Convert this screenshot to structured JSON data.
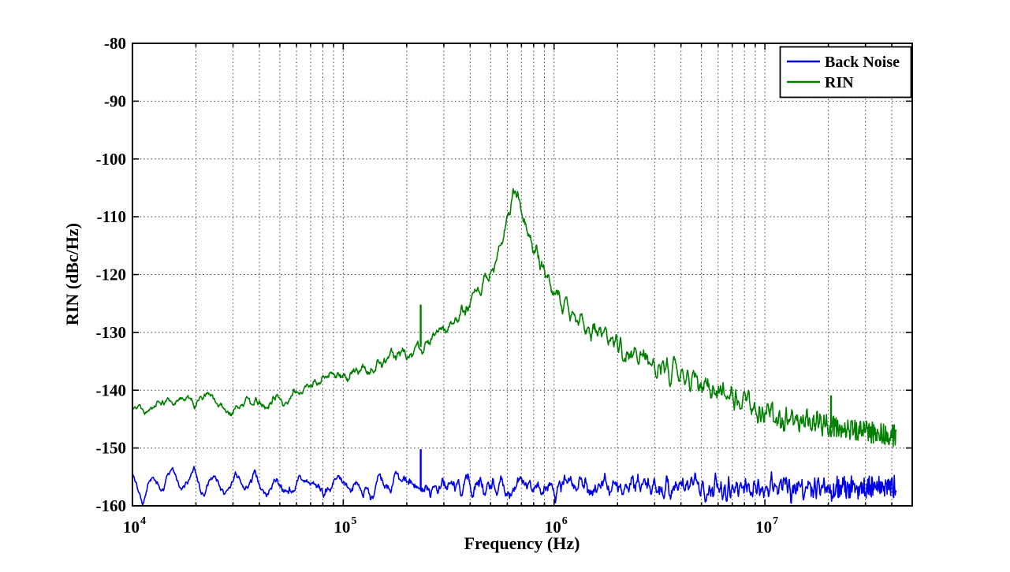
{
  "figure": {
    "background": "#ffffff",
    "title": "",
    "colors": {
      "axis": "#000000",
      "grid": "#3a3a3a",
      "plot_background": "#ffffff",
      "back_noise": "#0000e6",
      "rin": "#007f00"
    }
  },
  "chart_data": {
    "type": "line",
    "title": "",
    "xlabel": "Frequency (Hz)",
    "ylabel": "RIN (dBc/Hz)",
    "xscale": "log",
    "xlim": [
      10000,
      50000000
    ],
    "ylim": [
      -160,
      -80
    ],
    "grid": "dotted, major and minor verticals on log x, horizontals every 10 dB",
    "legend_position": "top-right inside axes",
    "x_ticks": [
      {
        "base": "10",
        "exponent": "4",
        "value": 10000
      },
      {
        "base": "10",
        "exponent": "5",
        "value": 100000
      },
      {
        "base": "10",
        "exponent": "6",
        "value": 1000000
      },
      {
        "base": "10",
        "exponent": "7",
        "value": 10000000
      }
    ],
    "y_ticks": [
      {
        "label": "-80",
        "value": -80
      },
      {
        "label": "-90",
        "value": -90
      },
      {
        "label": "-100",
        "value": -100
      },
      {
        "label": "-110",
        "value": -110
      },
      {
        "label": "-120",
        "value": -120
      },
      {
        "label": "-130",
        "value": -130
      },
      {
        "label": "-140",
        "value": -140
      },
      {
        "label": "-150",
        "value": -150
      },
      {
        "label": "-160",
        "value": -160
      }
    ],
    "data_end_hz": 42000000,
    "render_points": 1500,
    "series": [
      {
        "name": "Back Noise",
        "color": "#0000e6",
        "seed": 7,
        "noise_db": 1.6,
        "anchors_hz_db": [
          [
            10000,
            -154.0
          ],
          [
            11200,
            -159.3
          ],
          [
            12500,
            -154.6
          ],
          [
            14000,
            -157.6
          ],
          [
            15500,
            -154.4
          ],
          [
            17500,
            -157.8
          ],
          [
            19500,
            -154.6
          ],
          [
            22000,
            -157.2
          ],
          [
            24500,
            -155.0
          ],
          [
            27500,
            -159.0
          ],
          [
            30500,
            -155.0
          ],
          [
            34000,
            -157.6
          ],
          [
            38000,
            -155.2
          ],
          [
            43000,
            -157.8
          ],
          [
            48000,
            -155.4
          ],
          [
            55000,
            -157.6
          ],
          [
            65000,
            -155.6
          ],
          [
            80000,
            -157.4
          ],
          [
            100000,
            -156.0
          ],
          [
            130000,
            -157.2
          ],
          [
            170000,
            -156.2
          ],
          [
            230000,
            -156.8
          ],
          [
            400000,
            -156.6
          ],
          [
            1000000,
            -156.8
          ],
          [
            3000000,
            -156.7
          ],
          [
            10000000,
            -156.8
          ],
          [
            42000000,
            -156.8
          ]
        ],
        "spikes_hz_db": [
          [
            233000,
            -150.2
          ]
        ]
      },
      {
        "name": "RIN",
        "color": "#007f00",
        "seed": 13,
        "noise_db": 1.5,
        "anchors_hz_db": [
          [
            10000,
            -141.8
          ],
          [
            11500,
            -143.2
          ],
          [
            13000,
            -141.4
          ],
          [
            15000,
            -142.8
          ],
          [
            17000,
            -141.2
          ],
          [
            20000,
            -142.2
          ],
          [
            23000,
            -140.9
          ],
          [
            26000,
            -142.9
          ],
          [
            30000,
            -144.2
          ],
          [
            33000,
            -141.4
          ],
          [
            38000,
            -142.4
          ],
          [
            43000,
            -143.0
          ],
          [
            48000,
            -140.9
          ],
          [
            55000,
            -142.1
          ],
          [
            62000,
            -139.9
          ],
          [
            70000,
            -138.9
          ],
          [
            80000,
            -138.1
          ],
          [
            90000,
            -137.8
          ],
          [
            100000,
            -137.3
          ],
          [
            115000,
            -137.0
          ],
          [
            130000,
            -136.4
          ],
          [
            150000,
            -134.9
          ],
          [
            170000,
            -133.9
          ],
          [
            200000,
            -133.9
          ],
          [
            230000,
            -132.4
          ],
          [
            260000,
            -130.9
          ],
          [
            300000,
            -129.9
          ],
          [
            350000,
            -127.9
          ],
          [
            400000,
            -125.4
          ],
          [
            450000,
            -122.4
          ],
          [
            500000,
            -119.4
          ],
          [
            550000,
            -115.4
          ],
          [
            600000,
            -110.9
          ],
          [
            630000,
            -107.7
          ],
          [
            655000,
            -106.0
          ],
          [
            680000,
            -107.6
          ],
          [
            720000,
            -110.6
          ],
          [
            770000,
            -113.6
          ],
          [
            830000,
            -116.6
          ],
          [
            900000,
            -119.6
          ],
          [
            1000000,
            -122.9
          ],
          [
            1200000,
            -126.4
          ],
          [
            1400000,
            -128.7
          ],
          [
            1700000,
            -130.7
          ],
          [
            2000000,
            -132.1
          ],
          [
            2500000,
            -134.1
          ],
          [
            3000000,
            -135.4
          ],
          [
            3500000,
            -136.4
          ],
          [
            4000000,
            -137.4
          ],
          [
            5000000,
            -138.9
          ],
          [
            6000000,
            -139.9
          ],
          [
            7000000,
            -140.9
          ],
          [
            8000000,
            -141.9
          ],
          [
            9000000,
            -142.9
          ],
          [
            10000000,
            -143.9
          ],
          [
            12000000,
            -144.9
          ],
          [
            15000000,
            -145.4
          ],
          [
            18000000,
            -145.9
          ],
          [
            22000000,
            -146.4
          ],
          [
            27000000,
            -146.9
          ],
          [
            33000000,
            -147.4
          ],
          [
            42000000,
            -147.9
          ]
        ],
        "spikes_hz_db": [
          [
            233000,
            -125.2
          ],
          [
            20600000,
            -140.9
          ]
        ]
      }
    ]
  }
}
